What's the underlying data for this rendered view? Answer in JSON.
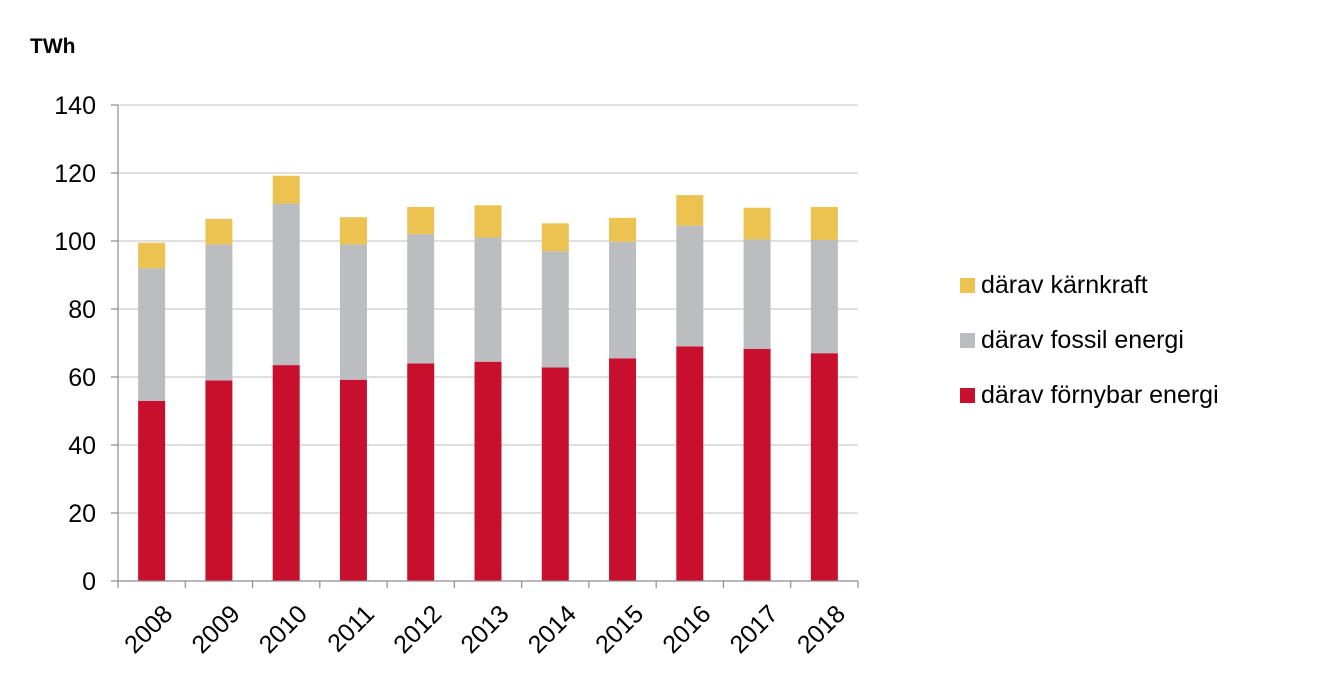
{
  "chart_data": {
    "type": "bar",
    "stacked": true,
    "title": "",
    "xlabel": "",
    "ylabel": "TWh",
    "ylim": [
      0,
      140
    ],
    "yticks": [
      0,
      20,
      40,
      60,
      80,
      100,
      120,
      140
    ],
    "grid": true,
    "legend_position": "right",
    "categories": [
      "2008",
      "2009",
      "2010",
      "2011",
      "2012",
      "2013",
      "2014",
      "2015",
      "2016",
      "2017",
      "2018"
    ],
    "series": [
      {
        "name": "därav förnybar energi",
        "color": "#c8102e",
        "values": [
          53,
          59,
          63.5,
          59.2,
          64,
          64.5,
          62.8,
          65.5,
          69,
          68.3,
          67
        ]
      },
      {
        "name": "därav fossil energi",
        "color": "#bcbdc0",
        "values": [
          39,
          40,
          47.5,
          39.8,
          38,
          36.5,
          34.2,
          34.3,
          35.5,
          32.2,
          33.3
        ]
      },
      {
        "name": "därav kärnkraft",
        "color": "#ecc251",
        "values": [
          7.5,
          7.5,
          8.2,
          8,
          8,
          9.5,
          8.2,
          7,
          9,
          9.3,
          9.7
        ]
      }
    ],
    "legend_order": [
      2,
      1,
      0
    ]
  }
}
